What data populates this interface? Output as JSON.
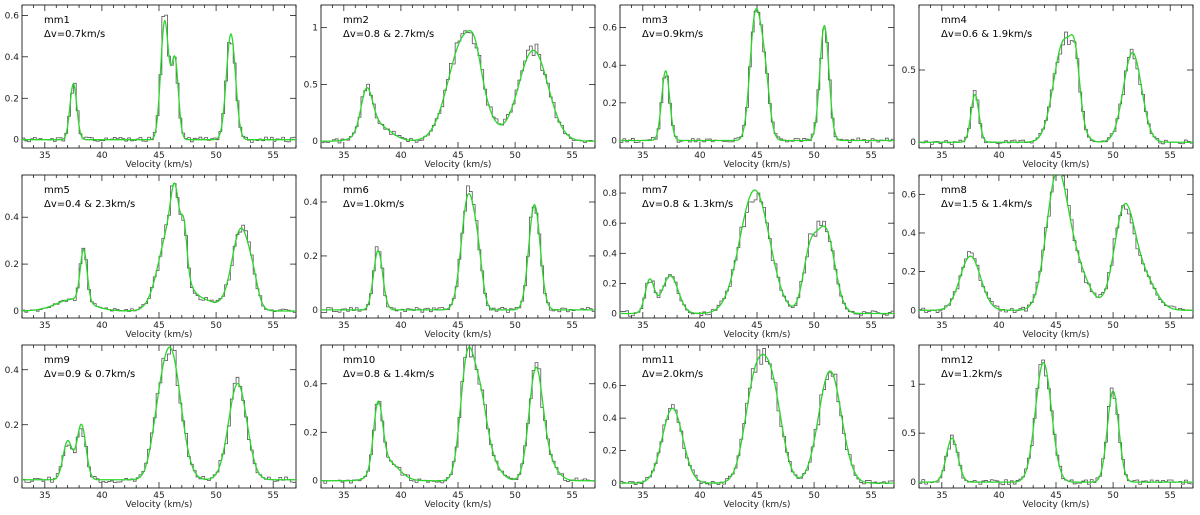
{
  "chart_data": [
    {
      "type": "line",
      "name": "mm1",
      "annotation": "Δv=0.7km/s",
      "xlabel": "Velocity (km/s)",
      "xlim": [
        33,
        57
      ],
      "ylim": [
        -0.04,
        0.65
      ],
      "xticks": [
        35,
        40,
        45,
        50,
        55
      ],
      "yticks": [
        0,
        0.2,
        0.4,
        0.6
      ],
      "ytick_labels": [
        "0",
        "0.2",
        "0.4",
        "0.6"
      ],
      "colors": {
        "observed": "#555555",
        "fit": "#2bd62b"
      },
      "components": [
        {
          "center": 37.5,
          "amplitude": 0.27,
          "width": 0.3
        },
        {
          "center": 45.5,
          "amplitude": 0.57,
          "width": 0.35
        },
        {
          "center": 46.4,
          "amplitude": 0.38,
          "width": 0.3
        },
        {
          "center": 51.3,
          "amplitude": 0.51,
          "width": 0.4
        }
      ]
    },
    {
      "type": "line",
      "name": "mm2",
      "annotation": "Δv=0.8 & 2.7km/s",
      "xlabel": "Velocity (km/s)",
      "xlim": [
        33,
        57
      ],
      "ylim": [
        -0.06,
        1.2
      ],
      "xticks": [
        35,
        40,
        45,
        50,
        55
      ],
      "yticks": [
        0,
        0.5,
        1
      ],
      "ytick_labels": [
        "0",
        "0.5",
        "1"
      ],
      "colors": {
        "observed": "#555555",
        "fit": "#2bd62b"
      },
      "components": [
        {
          "center": 37.0,
          "amplitude": 0.35,
          "width": 0.5
        },
        {
          "center": 37.8,
          "amplitude": 0.15,
          "width": 1.2
        },
        {
          "center": 45.6,
          "amplitude": 0.92,
          "width": 1.4
        },
        {
          "center": 46.5,
          "amplitude": 0.15,
          "width": 0.5
        },
        {
          "center": 51.6,
          "amplitude": 0.8,
          "width": 1.3
        }
      ]
    },
    {
      "type": "line",
      "name": "mm3",
      "annotation": "Δv=0.9km/s",
      "xlabel": "Velocity (km/s)",
      "xlim": [
        33,
        57
      ],
      "ylim": [
        -0.04,
        0.72
      ],
      "xticks": [
        35,
        40,
        45,
        50,
        55
      ],
      "yticks": [
        0,
        0.2,
        0.4,
        0.6
      ],
      "ytick_labels": [
        "0",
        "0.2",
        "0.4",
        "0.6"
      ],
      "colors": {
        "observed": "#555555",
        "fit": "#2bd62b"
      },
      "components": [
        {
          "center": 37.0,
          "amplitude": 0.37,
          "width": 0.35
        },
        {
          "center": 44.8,
          "amplitude": 0.6,
          "width": 0.45
        },
        {
          "center": 45.6,
          "amplitude": 0.38,
          "width": 0.45
        },
        {
          "center": 50.9,
          "amplitude": 0.61,
          "width": 0.4
        }
      ]
    },
    {
      "type": "line",
      "name": "mm4",
      "annotation": "Δv=0.6 & 1.9km/s",
      "xlabel": "Velocity (km/s)",
      "xlim": [
        33,
        57
      ],
      "ylim": [
        -0.04,
        0.95
      ],
      "xticks": [
        35,
        40,
        45,
        50,
        55
      ],
      "yticks": [
        0,
        0.5
      ],
      "ytick_labels": [
        "0",
        "0.5"
      ],
      "colors": {
        "observed": "#555555",
        "fit": "#2bd62b"
      },
      "components": [
        {
          "center": 37.9,
          "amplitude": 0.33,
          "width": 0.35
        },
        {
          "center": 45.7,
          "amplitude": 0.7,
          "width": 0.9
        },
        {
          "center": 46.7,
          "amplitude": 0.3,
          "width": 0.4
        },
        {
          "center": 51.7,
          "amplitude": 0.62,
          "width": 0.8
        }
      ]
    },
    {
      "type": "line",
      "name": "mm5",
      "annotation": "Δv=0.4 & 2.3km/s",
      "xlabel": "Velocity (km/s)",
      "xlim": [
        33,
        57
      ],
      "ylim": [
        -0.03,
        0.58
      ],
      "xticks": [
        35,
        40,
        45,
        50,
        55
      ],
      "yticks": [
        0,
        0.2,
        0.4
      ],
      "ytick_labels": [
        "0",
        "0.2",
        "0.4"
      ],
      "colors": {
        "observed": "#555555",
        "fit": "#2bd62b"
      },
      "components": [
        {
          "center": 38.4,
          "amplitude": 0.22,
          "width": 0.3
        },
        {
          "center": 37.5,
          "amplitude": 0.05,
          "width": 1.5
        },
        {
          "center": 46.0,
          "amplitude": 0.35,
          "width": 1.0
        },
        {
          "center": 46.4,
          "amplitude": 0.2,
          "width": 0.35
        },
        {
          "center": 47.2,
          "amplitude": 0.17,
          "width": 0.25
        },
        {
          "center": 48.5,
          "amplitude": 0.05,
          "width": 1.5
        },
        {
          "center": 52.2,
          "amplitude": 0.35,
          "width": 0.8
        },
        {
          "center": 53.3,
          "amplitude": 0.05,
          "width": 0.4
        }
      ]
    },
    {
      "type": "line",
      "name": "mm6",
      "annotation": "Δv=1.0km/s",
      "xlabel": "Velocity (km/s)",
      "xlim": [
        33,
        57
      ],
      "ylim": [
        -0.03,
        0.5
      ],
      "xticks": [
        35,
        40,
        45,
        50,
        55
      ],
      "yticks": [
        0,
        0.2,
        0.4
      ],
      "ytick_labels": [
        "0",
        "0.2",
        "0.4"
      ],
      "colors": {
        "observed": "#555555",
        "fit": "#2bd62b"
      },
      "components": [
        {
          "center": 38.0,
          "amplitude": 0.22,
          "width": 0.4
        },
        {
          "center": 45.9,
          "amplitude": 0.42,
          "width": 0.6
        },
        {
          "center": 46.8,
          "amplitude": 0.12,
          "width": 0.4
        },
        {
          "center": 51.7,
          "amplitude": 0.39,
          "width": 0.5
        }
      ]
    },
    {
      "type": "line",
      "name": "mm7",
      "annotation": "Δv=0.8 & 1.3km/s",
      "xlabel": "Velocity (km/s)",
      "xlim": [
        33,
        57
      ],
      "ylim": [
        -0.03,
        0.92
      ],
      "xticks": [
        35,
        40,
        45,
        50,
        55
      ],
      "yticks": [
        0,
        0.2,
        0.4,
        0.6,
        0.8
      ],
      "ytick_labels": [
        "0",
        "0.2",
        "0.4",
        "0.6",
        "0.8"
      ],
      "colors": {
        "observed": "#555555",
        "fit": "#2bd62b"
      },
      "components": [
        {
          "center": 35.6,
          "amplitude": 0.22,
          "width": 0.4
        },
        {
          "center": 37.4,
          "amplitude": 0.25,
          "width": 0.7
        },
        {
          "center": 44.8,
          "amplitude": 0.82,
          "width": 1.3
        },
        {
          "center": 49.6,
          "amplitude": 0.35,
          "width": 0.6
        },
        {
          "center": 51.0,
          "amplitude": 0.55,
          "width": 0.8
        }
      ]
    },
    {
      "type": "line",
      "name": "mm8",
      "annotation": "Δv=1.5 & 1.4km/s",
      "xlabel": "Velocity (km/s)",
      "xlim": [
        33,
        57
      ],
      "ylim": [
        -0.04,
        0.7
      ],
      "xticks": [
        35,
        40,
        45,
        50,
        55
      ],
      "yticks": [
        0,
        0.2,
        0.4,
        0.6
      ],
      "ytick_labels": [
        "0",
        "0.2",
        "0.4",
        "0.6"
      ],
      "colors": {
        "observed": "#555555",
        "fit": "#2bd62b"
      },
      "components": [
        {
          "center": 37.5,
          "amplitude": 0.28,
          "width": 0.9
        },
        {
          "center": 45.0,
          "amplitude": 0.6,
          "width": 0.9
        },
        {
          "center": 46.5,
          "amplitude": 0.25,
          "width": 1.2
        },
        {
          "center": 51.0,
          "amplitude": 0.52,
          "width": 0.9
        },
        {
          "center": 52.8,
          "amplitude": 0.15,
          "width": 1.0
        }
      ]
    },
    {
      "type": "line",
      "name": "mm9",
      "annotation": "Δv=0.9 & 0.7km/s",
      "xlabel": "Velocity (km/s)",
      "xlim": [
        33,
        57
      ],
      "ylim": [
        -0.03,
        0.49
      ],
      "xticks": [
        35,
        40,
        45,
        50,
        55
      ],
      "yticks": [
        0,
        0.2,
        0.4
      ],
      "ytick_labels": [
        "0",
        "0.2",
        "0.4"
      ],
      "colors": {
        "observed": "#555555",
        "fit": "#2bd62b"
      },
      "components": [
        {
          "center": 37.0,
          "amplitude": 0.14,
          "width": 0.4
        },
        {
          "center": 38.2,
          "amplitude": 0.2,
          "width": 0.4
        },
        {
          "center": 46.0,
          "amplitude": 0.47,
          "width": 0.9
        },
        {
          "center": 44.8,
          "amplitude": 0.08,
          "width": 0.6
        },
        {
          "center": 51.9,
          "amplitude": 0.35,
          "width": 0.8
        }
      ]
    },
    {
      "type": "line",
      "name": "mm10",
      "annotation": "Δv=0.8 & 1.4km/s",
      "xlabel": "Velocity (km/s)",
      "xlim": [
        33,
        57
      ],
      "ylim": [
        -0.03,
        0.56
      ],
      "xticks": [
        35,
        40,
        45,
        50,
        55
      ],
      "yticks": [
        0,
        0.2,
        0.4
      ],
      "ytick_labels": [
        "0",
        "0.2",
        "0.4"
      ],
      "colors": {
        "observed": "#555555",
        "fit": "#2bd62b"
      },
      "components": [
        {
          "center": 38.0,
          "amplitude": 0.27,
          "width": 0.4
        },
        {
          "center": 38.8,
          "amplitude": 0.08,
          "width": 1.0
        },
        {
          "center": 45.8,
          "amplitude": 0.48,
          "width": 0.6
        },
        {
          "center": 46.9,
          "amplitude": 0.28,
          "width": 0.6
        },
        {
          "center": 47.8,
          "amplitude": 0.08,
          "width": 0.8
        },
        {
          "center": 51.8,
          "amplitude": 0.43,
          "width": 0.6
        },
        {
          "center": 52.8,
          "amplitude": 0.08,
          "width": 0.8
        }
      ]
    },
    {
      "type": "line",
      "name": "mm11",
      "annotation": "Δv=2.0km/s",
      "xlabel": "Velocity (km/s)",
      "xlim": [
        33,
        57
      ],
      "ylim": [
        -0.03,
        0.85
      ],
      "xticks": [
        35,
        40,
        45,
        50,
        55
      ],
      "yticks": [
        0,
        0.2,
        0.4,
        0.6
      ],
      "ytick_labels": [
        "0",
        "0.2",
        "0.4",
        "0.6"
      ],
      "colors": {
        "observed": "#555555",
        "fit": "#2bd62b"
      },
      "components": [
        {
          "center": 37.6,
          "amplitude": 0.46,
          "width": 0.9
        },
        {
          "center": 44.8,
          "amplitude": 0.57,
          "width": 0.9
        },
        {
          "center": 46.3,
          "amplitude": 0.55,
          "width": 0.9
        },
        {
          "center": 51.4,
          "amplitude": 0.69,
          "width": 1.0
        }
      ]
    },
    {
      "type": "line",
      "name": "mm12",
      "annotation": "Δv=1.2km/s",
      "xlabel": "Velocity (km/s)",
      "xlim": [
        33,
        57
      ],
      "ylim": [
        -0.06,
        1.4
      ],
      "xticks": [
        35,
        40,
        45,
        50,
        55
      ],
      "yticks": [
        0,
        0.5,
        1
      ],
      "ytick_labels": [
        "0",
        "0.5",
        "1"
      ],
      "colors": {
        "observed": "#555555",
        "fit": "#2bd62b"
      },
      "components": [
        {
          "center": 35.9,
          "amplitude": 0.45,
          "width": 0.5
        },
        {
          "center": 43.9,
          "amplitude": 1.22,
          "width": 0.7
        },
        {
          "center": 50.0,
          "amplitude": 0.93,
          "width": 0.5
        }
      ]
    }
  ]
}
